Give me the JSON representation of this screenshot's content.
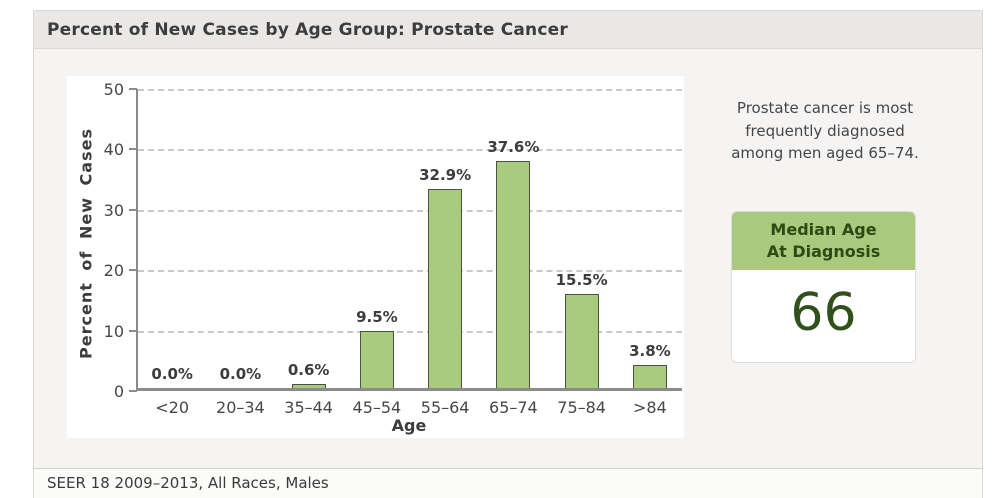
{
  "header": {
    "title": "Percent of New Cases by Age Group: Prostate Cancer"
  },
  "chart_data": {
    "type": "bar",
    "title": "Percent of New Cases by Age Group: Prostate Cancer",
    "categories": [
      "<20",
      "20–34",
      "35–44",
      "45–54",
      "55–64",
      "65–74",
      "75–84",
      ">84"
    ],
    "values": [
      0.0,
      0.0,
      0.6,
      9.5,
      32.9,
      37.6,
      15.5,
      3.8
    ],
    "value_labels": [
      "0.0%",
      "0.0%",
      "0.6%",
      "9.5%",
      "32.9%",
      "37.6%",
      "15.5%",
      "3.8%"
    ],
    "xlabel": "Age",
    "ylabel": "Percent of New Cases",
    "ylim": [
      0,
      50
    ],
    "ytick_step": 10,
    "yticks": [
      0,
      10,
      20,
      30,
      40,
      50
    ],
    "grid": "horizontal-dashed",
    "legend": "none",
    "bar_color": "#a9cb7d",
    "bar_border_color": "#4d5343"
  },
  "sidebar": {
    "summary": "Prostate cancer is most frequently diagnosed among men aged 65–74.",
    "median_box": {
      "title_line1": "Median Age",
      "title_line2": "At Diagnosis",
      "value": "66",
      "header_color": "#abc97c",
      "text_color": "#2c4a14",
      "value_color": "#31511c"
    }
  },
  "footer": {
    "source": "SEER 18 2009–2013, All Races, Males"
  }
}
